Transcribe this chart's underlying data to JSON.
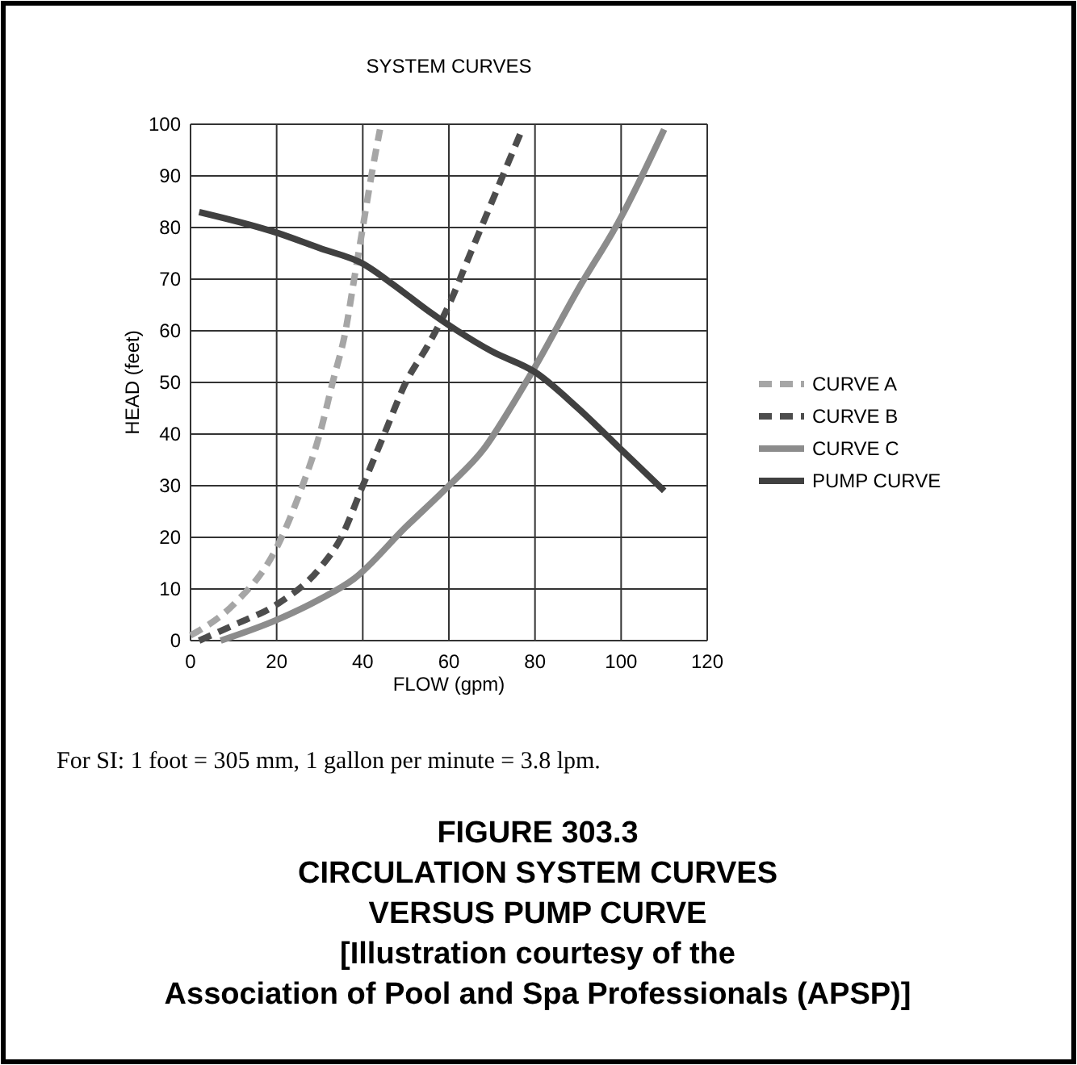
{
  "chart_data": {
    "type": "line",
    "title": "SYSTEM CURVES",
    "xlabel": "FLOW (gpm)",
    "ylabel": "HEAD (feet)",
    "xlim": [
      0,
      120
    ],
    "xticks": [
      0,
      20,
      40,
      60,
      80,
      100,
      120
    ],
    "ylim": [
      0,
      100
    ],
    "yticks": [
      0,
      10,
      20,
      30,
      40,
      50,
      60,
      70,
      80,
      90,
      100
    ],
    "grid": true,
    "legend": "right",
    "marker": "none",
    "series": [
      {
        "name": "CURVE A",
        "color": "#a6a6a6",
        "line_style": "dashed",
        "x": [
          0,
          10,
          20,
          26,
          30,
          33,
          36,
          38,
          40,
          42,
          44
        ],
        "values": [
          1,
          7,
          18,
          30,
          40,
          50,
          60,
          70,
          80,
          90,
          99
        ]
      },
      {
        "name": "CURVE B",
        "color": "#4d4d4d",
        "line_style": "dashed",
        "x": [
          2,
          10,
          20,
          30,
          35,
          40,
          45,
          50,
          55,
          60,
          65,
          70,
          74,
          77
        ],
        "values": [
          0,
          3,
          7,
          14,
          20,
          30,
          40,
          50,
          57,
          65,
          75,
          85,
          93,
          99
        ]
      },
      {
        "name": "CURVE C",
        "color": "#8c8c8c",
        "line_style": "solid",
        "x": [
          7,
          20,
          30,
          38,
          50,
          60,
          68,
          75,
          80,
          90,
          100,
          110
        ],
        "values": [
          0,
          4,
          8,
          12,
          22,
          30,
          37,
          46,
          53,
          68,
          82,
          99
        ]
      },
      {
        "name": "PUMP CURVE",
        "color": "#404040",
        "line_style": "solid",
        "x": [
          2,
          20,
          30,
          40,
          47,
          55,
          62,
          70,
          80,
          90,
          100,
          110
        ],
        "values": [
          83,
          79,
          76,
          73,
          69,
          64,
          60,
          56,
          52,
          45,
          37,
          29
        ]
      }
    ],
    "annotations": [
      "For SI:  1 foot = 305 mm, 1 gallon per minute = 3.8 lpm.",
      "FIGURE 303.3",
      "CIRCULATION SYSTEM CURVES",
      "VERSUS PUMP CURVE",
      "[Illustration courtesy of the",
      "Association of Pool and Spa Professionals (APSP)]"
    ]
  }
}
